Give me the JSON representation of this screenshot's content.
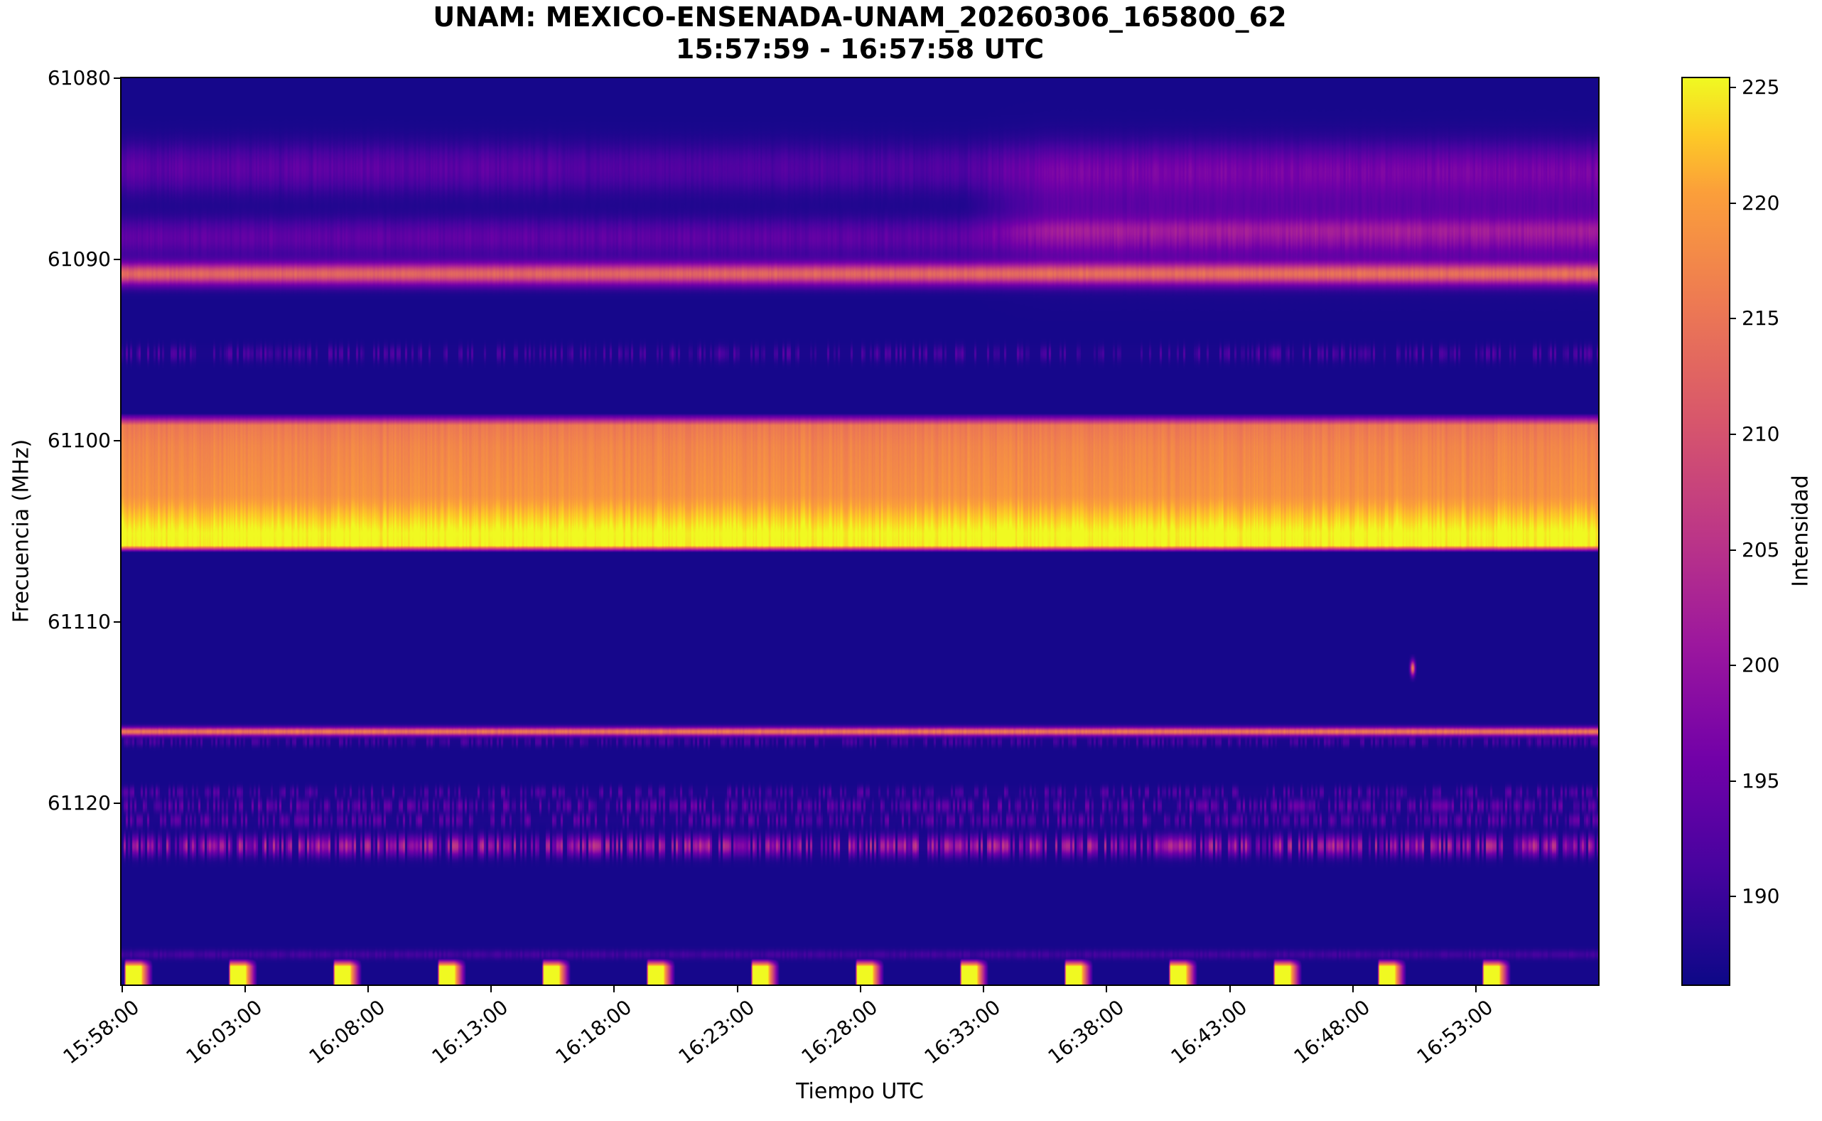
{
  "figure": {
    "title_line1": "UNAM: MEXICO-ENSENADA-UNAM_20260306_165800_62",
    "title_line2": "15:57:59 - 16:57:58 UTC"
  },
  "axes": {
    "xlabel": "Tiempo UTC",
    "ylabel": "Frecuencia (MHz)",
    "x_start_utc": "15:57:59",
    "x_end_utc": "16:57:58",
    "x_tick_labels": [
      "15:58:00",
      "16:03:00",
      "16:08:00",
      "16:13:00",
      "16:18:00",
      "16:23:00",
      "16:28:00",
      "16:33:00",
      "16:38:00",
      "16:43:00",
      "16:48:00",
      "16:53:00"
    ],
    "y_tick_values": [
      61080,
      61090,
      61100,
      61110,
      61120
    ],
    "y_min_mhz": 61080,
    "y_max_mhz": 61130
  },
  "colorbar": {
    "label": "Intensidad",
    "tick_values": [
      190,
      195,
      200,
      205,
      210,
      215,
      220,
      225
    ],
    "intensity_min": 186.2,
    "intensity_max": 225.4
  },
  "chart_data": {
    "type": "heatmap",
    "title": "UNAM: MEXICO-ENSENADA-UNAM_20260306_165800_62",
    "subtitle": "15:57:59 - 16:57:58 UTC",
    "xlabel": "Tiempo UTC",
    "ylabel": "Frecuencia (MHz)",
    "colorbar_label": "Intensidad",
    "colormap": "plasma",
    "colormap_stops": [
      [
        0,
        "#0d0887"
      ],
      [
        0.125,
        "#46039f"
      ],
      [
        0.25,
        "#7201a8"
      ],
      [
        0.375,
        "#9c179e"
      ],
      [
        0.5,
        "#bd3786"
      ],
      [
        0.625,
        "#d8576b"
      ],
      [
        0.75,
        "#ed7953"
      ],
      [
        0.875,
        "#fb9f3a"
      ],
      [
        0.9375,
        "#fdca26"
      ],
      [
        1,
        "#f0f921"
      ]
    ],
    "time_range_utc": [
      "15:57:59",
      "16:57:58"
    ],
    "freq_range_mhz": [
      61080,
      61130
    ],
    "intensity_range": [
      186.2,
      225.4
    ],
    "background_intensity": 187.0,
    "time_regions": {
      "bounds_frac": [
        0.3,
        0.6
      ],
      "blend_frac": 0.03
    },
    "bands": [
      {
        "name": "upper-diffuse-purple-band",
        "center_mhz": 61085.0,
        "sigma_mhz": 0.95,
        "amp": 6.5,
        "noise": 0.3,
        "region_amps": [
          1.0,
          0.8,
          1.05
        ]
      },
      {
        "name": "purple-band-61089",
        "center_mhz": 61088.8,
        "sigma_mhz": 0.75,
        "amp": 7.0,
        "noise": 0.25,
        "region_amps": [
          1.0,
          0.95,
          1.15
        ]
      },
      {
        "name": "magenta-row-right-61088",
        "center_mhz": 61088.3,
        "sigma_mhz": 0.35,
        "amp": 3.0,
        "noise": 0.2,
        "region_amps": [
          0,
          0,
          1
        ]
      },
      {
        "name": "right-side-purple-pedestal",
        "center_mhz": 61087.3,
        "sigma_mhz": 2.0,
        "amp": 5.5,
        "noise": 0.18,
        "region_amps": [
          0,
          0,
          1
        ]
      },
      {
        "name": "salmon-line-61091",
        "center_mhz": 61090.8,
        "sigma_mhz": 0.42,
        "amp": 25.5,
        "noise": 0.07,
        "region_amps": [
          1,
          1,
          1
        ]
      },
      {
        "name": "orange-line-61116",
        "center_mhz": 61116.05,
        "sigma_mhz": 0.16,
        "amp": 28.0,
        "noise": 0.08,
        "region_amps": [
          1,
          1,
          1
        ]
      }
    ],
    "main_band_profile": [
      [
        61098.5,
        0
      ],
      [
        61099.15,
        28.5
      ],
      [
        61100.3,
        30.2
      ],
      [
        61103.0,
        32.0
      ],
      [
        61105.1,
        38.8
      ],
      [
        61105.8,
        38.2
      ],
      [
        61106.15,
        0
      ]
    ],
    "speckle_rows": [
      {
        "center_mhz": 61095.2,
        "sigma_mhz": 0.3,
        "amp": 4.5,
        "density": 0.45
      },
      {
        "center_mhz": 61116.62,
        "sigma_mhz": 0.18,
        "amp": 4.0,
        "density": 0.5
      },
      {
        "center_mhz": 61119.4,
        "sigma_mhz": 0.22,
        "amp": 5.0,
        "density": 0.38
      },
      {
        "center_mhz": 61120.15,
        "sigma_mhz": 0.25,
        "amp": 6.5,
        "density": 0.55
      },
      {
        "center_mhz": 61120.95,
        "sigma_mhz": 0.25,
        "amp": 6.0,
        "density": 0.5
      },
      {
        "center_mhz": 61122.35,
        "sigma_mhz": 0.38,
        "amp": 13.0,
        "density": 0.68
      },
      {
        "center_mhz": 61128.35,
        "sigma_mhz": 0.18,
        "amp": 3.5,
        "density": 1.0
      }
    ],
    "calibration_pulses": {
      "first_center_s": 29,
      "period_s": 254.6,
      "count": 14,
      "rise_s": 5,
      "flat_s": 36,
      "decay_s": 30,
      "top_mhz": 61128.55,
      "edge_mhz": 0.45,
      "peak_intensity": 226.5
    },
    "point_artifact": {
      "time_s": 3147,
      "freq_mhz": 61112.55,
      "sigma_t_s": 4.0,
      "sigma_f_mhz": 0.28,
      "peak_intensity": 216
    }
  }
}
